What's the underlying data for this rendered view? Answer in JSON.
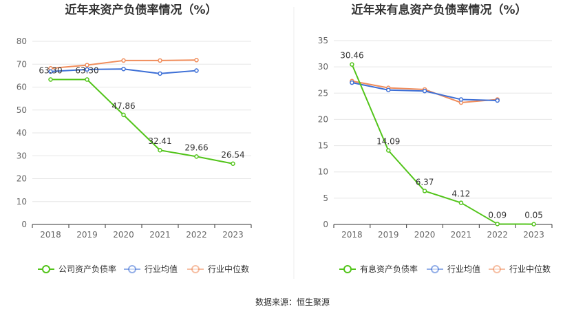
{
  "source": "数据来源：恒生聚源",
  "chart_data": [
    {
      "type": "line",
      "title": "近年来资产负债率情况（%）",
      "categories": [
        "2018",
        "2019",
        "2020",
        "2021",
        "2022",
        "2023"
      ],
      "ylim": [
        0,
        80
      ],
      "yticks": [
        0,
        10,
        20,
        30,
        40,
        50,
        60,
        70,
        80
      ],
      "grid": true,
      "legend_position": "bottom",
      "series": [
        {
          "name": "公司资产负债率",
          "color": "#52c41a",
          "values": [
            63.3,
            63.3,
            47.86,
            32.41,
            29.66,
            26.54
          ],
          "labels": [
            "63.30",
            "63.30",
            "47.86",
            "32.41",
            "29.66",
            "26.54"
          ]
        },
        {
          "name": "行业均值",
          "color": "#3d6fd6",
          "values": [
            66.8,
            67.7,
            67.9,
            65.9,
            67.2,
            null
          ]
        },
        {
          "name": "行业中位数",
          "color": "#f08c5a",
          "values": [
            68.2,
            69.6,
            71.6,
            71.6,
            71.8,
            null
          ]
        }
      ]
    },
    {
      "type": "line",
      "title": "近年来有息资产负债率情况（%）",
      "categories": [
        "2018",
        "2019",
        "2020",
        "2021",
        "2022",
        "2023"
      ],
      "ylim": [
        0,
        35
      ],
      "yticks": [
        0,
        5,
        10,
        15,
        20,
        25,
        30,
        35
      ],
      "grid": true,
      "legend_position": "bottom",
      "series": [
        {
          "name": "有息资产负债率",
          "color": "#52c41a",
          "values": [
            30.46,
            14.09,
            6.37,
            4.12,
            0.09,
            0.05
          ],
          "labels": [
            "30.46",
            "14.09",
            "6.37",
            "4.12",
            "0.09",
            "0.05"
          ]
        },
        {
          "name": "行业均值",
          "color": "#3d6fd6",
          "values": [
            27.0,
            25.6,
            25.4,
            23.8,
            23.6,
            null
          ]
        },
        {
          "name": "行业中位数",
          "color": "#f08c5a",
          "values": [
            27.3,
            26.0,
            25.7,
            23.2,
            23.8,
            null
          ]
        }
      ]
    }
  ]
}
